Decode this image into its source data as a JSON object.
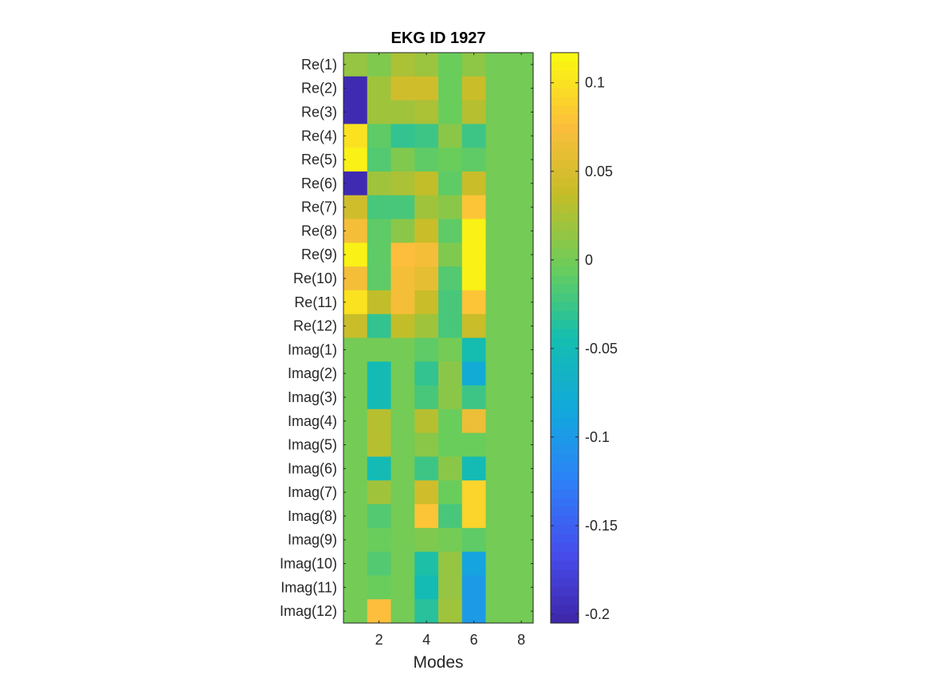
{
  "chart_data": {
    "type": "heatmap",
    "title": "EKG ID 1927",
    "xlabel": "Modes",
    "ylabel": "",
    "x_ticks": [
      2,
      4,
      6,
      8
    ],
    "x_range": [
      0.5,
      8.5
    ],
    "rows": [
      "Re(1)",
      "Re(2)",
      "Re(3)",
      "Re(4)",
      "Re(5)",
      "Re(6)",
      "Re(7)",
      "Re(8)",
      "Re(9)",
      "Re(10)",
      "Re(11)",
      "Re(12)",
      "Imag(1)",
      "Imag(2)",
      "Imag(3)",
      "Imag(4)",
      "Imag(5)",
      "Imag(6)",
      "Imag(7)",
      "Imag(8)",
      "Imag(9)",
      "Imag(10)",
      "Imag(11)",
      "Imag(12)"
    ],
    "columns": [
      1,
      2,
      3,
      4,
      5,
      6,
      7,
      8
    ],
    "values": [
      [
        0.015,
        0.005,
        0.025,
        0.018,
        -0.005,
        0.012,
        0.0,
        0.0
      ],
      [
        -0.2,
        0.02,
        0.045,
        0.045,
        -0.005,
        0.04,
        0.0,
        0.0
      ],
      [
        -0.2,
        0.02,
        0.02,
        0.025,
        -0.005,
        0.03,
        0.0,
        0.0
      ],
      [
        0.1,
        -0.01,
        -0.03,
        -0.025,
        0.01,
        -0.025,
        0.0,
        0.0
      ],
      [
        0.11,
        -0.015,
        0.005,
        -0.01,
        -0.005,
        -0.01,
        0.0,
        0.0
      ],
      [
        -0.2,
        0.02,
        0.025,
        0.035,
        -0.01,
        0.04,
        0.0,
        0.0
      ],
      [
        0.045,
        -0.02,
        -0.02,
        0.02,
        0.01,
        0.08,
        0.0,
        0.0
      ],
      [
        0.07,
        -0.01,
        0.01,
        0.04,
        -0.01,
        0.11,
        0.0,
        0.0
      ],
      [
        0.11,
        -0.01,
        0.075,
        0.07,
        0.005,
        0.11,
        0.0,
        0.0
      ],
      [
        0.07,
        -0.01,
        0.07,
        0.06,
        -0.015,
        0.11,
        0.0,
        0.0
      ],
      [
        0.1,
        0.035,
        0.07,
        0.04,
        -0.02,
        0.08,
        0.0,
        0.0
      ],
      [
        0.04,
        -0.03,
        0.035,
        0.02,
        -0.02,
        0.04,
        0.0,
        0.0
      ],
      [
        0.0,
        0.0,
        0.0,
        -0.01,
        0.0,
        -0.045,
        0.0,
        0.0
      ],
      [
        0.0,
        -0.05,
        0.0,
        -0.03,
        0.01,
        -0.08,
        0.0,
        0.0
      ],
      [
        0.0,
        -0.05,
        0.0,
        -0.02,
        0.01,
        -0.025,
        0.0,
        0.0
      ],
      [
        0.0,
        0.03,
        0.0,
        0.03,
        -0.005,
        0.065,
        0.0,
        0.0
      ],
      [
        0.0,
        0.03,
        0.0,
        0.01,
        -0.005,
        -0.005,
        0.0,
        0.0
      ],
      [
        0.0,
        -0.05,
        0.0,
        -0.025,
        0.01,
        -0.05,
        0.0,
        0.0
      ],
      [
        0.0,
        0.02,
        0.0,
        0.045,
        -0.005,
        0.09,
        0.0,
        0.0
      ],
      [
        0.0,
        -0.015,
        0.0,
        0.08,
        -0.02,
        0.09,
        0.0,
        0.0
      ],
      [
        0.0,
        -0.005,
        0.0,
        0.005,
        0.0,
        -0.01,
        0.0,
        0.0
      ],
      [
        0.0,
        -0.015,
        0.0,
        -0.04,
        0.015,
        -0.09,
        0.0,
        0.0
      ],
      [
        0.0,
        -0.005,
        0.0,
        -0.05,
        0.015,
        -0.1,
        0.0,
        0.0
      ],
      [
        0.0,
        0.075,
        0.0,
        -0.035,
        0.02,
        -0.1,
        0.0,
        0.0
      ]
    ],
    "colorbar": {
      "colormap": "parula",
      "range": [
        -0.205,
        0.117
      ],
      "ticks": [
        0.1,
        0.05,
        0,
        -0.05,
        -0.1,
        -0.15,
        -0.2
      ],
      "tick_labels": [
        "0.1",
        "0.05",
        "0",
        "-0.05",
        "-0.1",
        "-0.15",
        "-0.2"
      ]
    },
    "grid": false,
    "legend": "none"
  }
}
